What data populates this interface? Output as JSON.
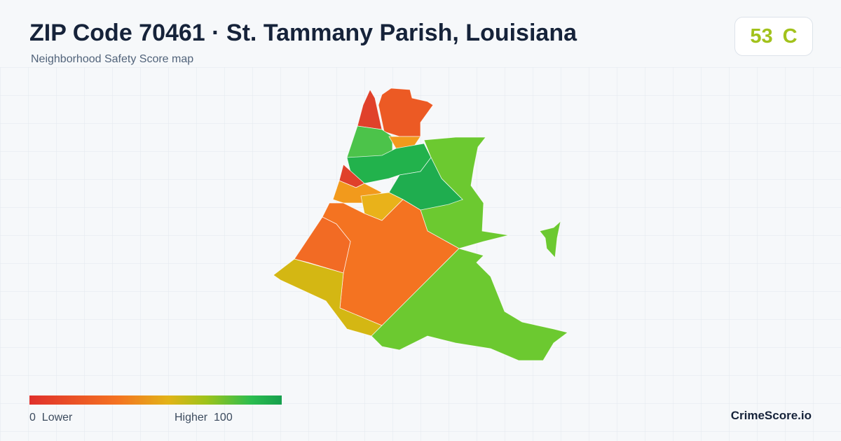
{
  "header": {
    "title": "ZIP Code 70461 · St. Tammany Parish, Louisiana",
    "subtitle": "Neighborhood Safety Score map",
    "score": "53",
    "grade": "C"
  },
  "legend": {
    "min_value": "0",
    "min_label": "Lower",
    "max_label": "Higher",
    "max_value": "100"
  },
  "footer": {
    "brand": "CrimeScore.io"
  }
}
